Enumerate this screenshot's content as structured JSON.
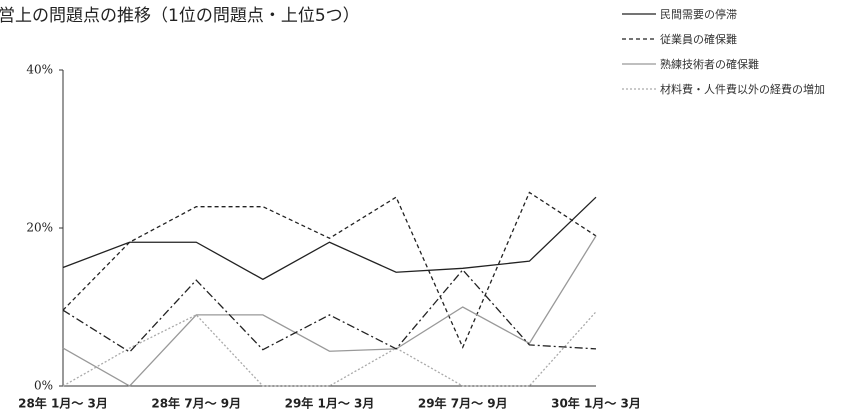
{
  "chart_data": {
    "type": "line",
    "title": "営上の問題点の推移（1位の問題点・上位5つ）",
    "categories": [
      "28年 1月～ 3月",
      null,
      "28年 7月～ 9月",
      null,
      "29年 1月～ 3月",
      null,
      "29年 7月～ 9月",
      null,
      "30年 1月～ 3月"
    ],
    "series": [
      {
        "name": "民間需要の停滞",
        "color": "#222222",
        "dash": "none",
        "values": [
          15,
          18.2,
          18.2,
          13.5,
          18.2,
          14.4,
          14.9,
          15.8,
          23.9
        ]
      },
      {
        "name": "従業員の確保難",
        "color": "#222222",
        "dash": "4 3",
        "values": [
          9.6,
          18.2,
          22.7,
          22.7,
          18.7,
          23.9,
          4.9,
          24.5,
          19
        ]
      },
      {
        "name": "熟練技術者の確保難",
        "color": "#999999",
        "dash": "none",
        "values": [
          4.8,
          0,
          9,
          9,
          4.4,
          4.7,
          10,
          5.4,
          19
        ]
      },
      {
        "name": "材料費・人件費以外の経費の増加",
        "color": "#aaaaaa",
        "dash": "2 2",
        "values": [
          0,
          4.8,
          9,
          0,
          0,
          4.8,
          0,
          0,
          9.4
        ]
      },
      {
        "name": null,
        "color": "#222222",
        "dash": "8 3 2 3",
        "values": [
          9.6,
          4.3,
          13.4,
          4.6,
          9,
          4.7,
          14.7,
          5.2,
          4.7
        ]
      }
    ],
    "ylim": [
      0,
      40
    ],
    "yticks": [
      {
        "value": 0,
        "label": "0%"
      },
      {
        "value": 20,
        "label": "20%"
      },
      {
        "value": 40,
        "label": "40%"
      }
    ],
    "grid": false
  }
}
